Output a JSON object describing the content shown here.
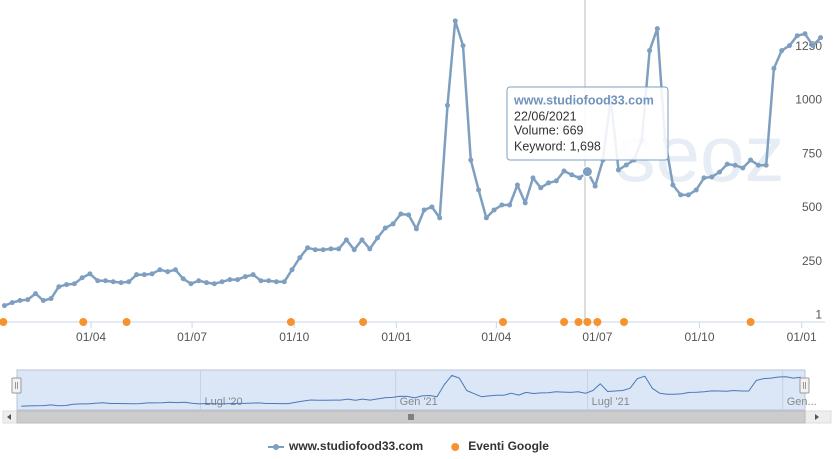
{
  "chart_data": {
    "type": "line",
    "xlim": [
      "2020-01-10",
      "2022-01-22"
    ],
    "ylim": [
      -30,
      1430
    ],
    "yticks": [
      1,
      250,
      500,
      750,
      1000,
      1250
    ],
    "xticks": [
      {
        "value": "2020-04-01",
        "label": "01/04"
      },
      {
        "value": "2020-07-01",
        "label": "01/07"
      },
      {
        "value": "2020-10-01",
        "label": "01/10"
      },
      {
        "value": "2021-01-01",
        "label": "01/01"
      },
      {
        "value": "2021-04-01",
        "label": "01/04"
      },
      {
        "value": "2021-07-01",
        "label": "01/07"
      },
      {
        "value": "2021-10-01",
        "label": "01/10"
      },
      {
        "value": "2022-01-01",
        "label": "01/01"
      }
    ],
    "grid": false,
    "watermark": "seoz",
    "series": [
      {
        "name": "www.studiofood33.com",
        "color": "#7f9fc1",
        "x": [
          "2020-01-14",
          "2020-01-21",
          "2020-01-28",
          "2020-02-04",
          "2020-02-11",
          "2020-02-18",
          "2020-02-25",
          "2020-03-03",
          "2020-03-10",
          "2020-03-17",
          "2020-03-24",
          "2020-03-31",
          "2020-04-07",
          "2020-04-14",
          "2020-04-21",
          "2020-04-28",
          "2020-05-05",
          "2020-05-12",
          "2020-05-19",
          "2020-05-26",
          "2020-06-02",
          "2020-06-09",
          "2020-06-16",
          "2020-06-23",
          "2020-06-30",
          "2020-07-07",
          "2020-07-14",
          "2020-07-21",
          "2020-07-28",
          "2020-08-04",
          "2020-08-11",
          "2020-08-18",
          "2020-08-25",
          "2020-09-01",
          "2020-09-08",
          "2020-09-15",
          "2020-09-22",
          "2020-09-29",
          "2020-10-06",
          "2020-10-13",
          "2020-10-20",
          "2020-10-27",
          "2020-11-03",
          "2020-11-10",
          "2020-11-17",
          "2020-11-24",
          "2020-12-01",
          "2020-12-08",
          "2020-12-15",
          "2020-12-22",
          "2020-12-29",
          "2021-01-05",
          "2021-01-12",
          "2021-01-19",
          "2021-01-26",
          "2021-02-02",
          "2021-02-09",
          "2021-02-16",
          "2021-02-23",
          "2021-03-02",
          "2021-03-09",
          "2021-03-16",
          "2021-03-23",
          "2021-03-30",
          "2021-04-06",
          "2021-04-13",
          "2021-04-20",
          "2021-04-27",
          "2021-05-04",
          "2021-05-11",
          "2021-05-18",
          "2021-05-25",
          "2021-06-01",
          "2021-06-08",
          "2021-06-15",
          "2021-06-22",
          "2021-06-29",
          "2021-07-06",
          "2021-07-13",
          "2021-07-20",
          "2021-07-27",
          "2021-08-03",
          "2021-08-10",
          "2021-08-17",
          "2021-08-24",
          "2021-08-31",
          "2021-09-07",
          "2021-09-14",
          "2021-09-21",
          "2021-09-28",
          "2021-10-05",
          "2021-10-12",
          "2021-10-19",
          "2021-10-26",
          "2021-11-02",
          "2021-11-09",
          "2021-11-16",
          "2021-11-23",
          "2021-11-30",
          "2021-12-07",
          "2021-12-14",
          "2021-12-21",
          "2021-12-28",
          "2022-01-04",
          "2022-01-11",
          "2022-01-18"
        ],
        "values": [
          46,
          60,
          70,
          74,
          102,
          70,
          79,
          134,
          144,
          148,
          176,
          194,
          162,
          162,
          157,
          153,
          157,
          190,
          190,
          194,
          213,
          204,
          213,
          171,
          148,
          162,
          153,
          148,
          157,
          167,
          167,
          181,
          190,
          162,
          162,
          157,
          157,
          213,
          269,
          315,
          306,
          306,
          310,
          310,
          352,
          306,
          352,
          310,
          361,
          407,
          426,
          472,
          468,
          403,
          491,
          505,
          454,
          977,
          1370,
          1255,
          723,
          584,
          454,
          491,
          514,
          514,
          607,
          524,
          640,
          594,
          617,
          626,
          672,
          654,
          640,
          669,
          602,
          723,
          1010,
          677,
          700,
          723,
          816,
          1232,
          1334,
          816,
          607,
          561,
          561,
          584,
          640,
          644,
          667,
          704,
          699,
          686,
          723,
          699,
          699,
          1149,
          1232,
          1255,
          1301,
          1310,
          1255,
          1292
        ]
      },
      {
        "name": "Eventi Google",
        "color": "#f7932f",
        "x": [
          "2020-01-13",
          "2020-03-25",
          "2020-05-03",
          "2020-09-28",
          "2020-12-02",
          "2021-04-07",
          "2021-06-01",
          "2021-06-14",
          "2021-06-22",
          "2021-07-01",
          "2021-07-25",
          "2021-11-16"
        ]
      }
    ],
    "tooltip": {
      "title": "www.studiofood33.com",
      "lines": [
        "22/06/2021",
        "Volume: 669",
        "Keyword: 1,698"
      ]
    },
    "navigator": {
      "xticks": [
        {
          "value": "2020-07-01",
          "label": "Lugl '20"
        },
        {
          "value": "2021-01-01",
          "label": "Gen '21"
        },
        {
          "value": "2021-07-01",
          "label": "Lugl '21"
        },
        {
          "value": "2022-01-01",
          "label": "Gen..."
        }
      ]
    }
  }
}
